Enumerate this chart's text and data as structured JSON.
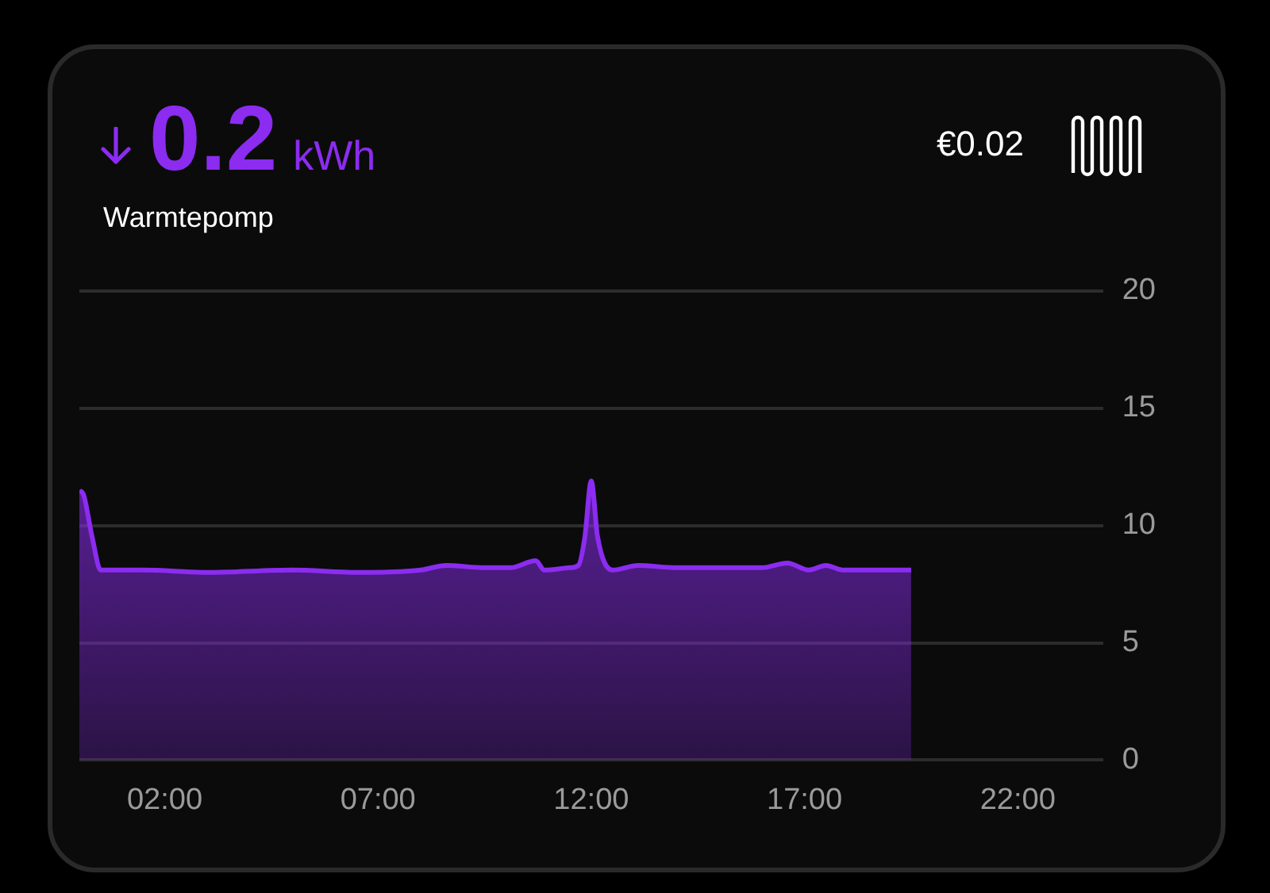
{
  "chart_data": {
    "type": "area",
    "title": "0.2 kWh",
    "subtitle": "Warmtepomp",
    "annotations": [
      "€0.02"
    ],
    "x": [
      0,
      0.1,
      0.3,
      0.5,
      1.5,
      3,
      5,
      6.5,
      8,
      8.6,
      9.5,
      10.1,
      10.7,
      10.9,
      11.5,
      11.7,
      11.85,
      12,
      12.15,
      12.5,
      13.1,
      14,
      15,
      16,
      16.6,
      17.1,
      17.5,
      17.9,
      18.7,
      19.5
    ],
    "series": [
      {
        "color": "#8b2cf0",
        "values": [
          11.5,
          11.3,
          9.5,
          8.1,
          8.1,
          8.0,
          8.1,
          8.0,
          8.1,
          8.3,
          8.2,
          8.2,
          8.5,
          8.1,
          8.2,
          8.3,
          9.5,
          11.9,
          9.5,
          8.1,
          8.3,
          8.2,
          8.2,
          8.2,
          8.4,
          8.1,
          8.3,
          8.1,
          8.1,
          8.1
        ]
      }
    ],
    "xlim": [
      0,
      24
    ],
    "xticks": [
      {
        "value": 2,
        "label": "02:00"
      },
      {
        "value": 7,
        "label": "07:00"
      },
      {
        "value": 12,
        "label": "12:00"
      },
      {
        "value": 17,
        "label": "17:00"
      },
      {
        "value": 22,
        "label": "22:00"
      }
    ],
    "ylim": [
      0,
      20
    ],
    "yticks": [
      0,
      5,
      10,
      15,
      20
    ],
    "grid": "y"
  }
}
